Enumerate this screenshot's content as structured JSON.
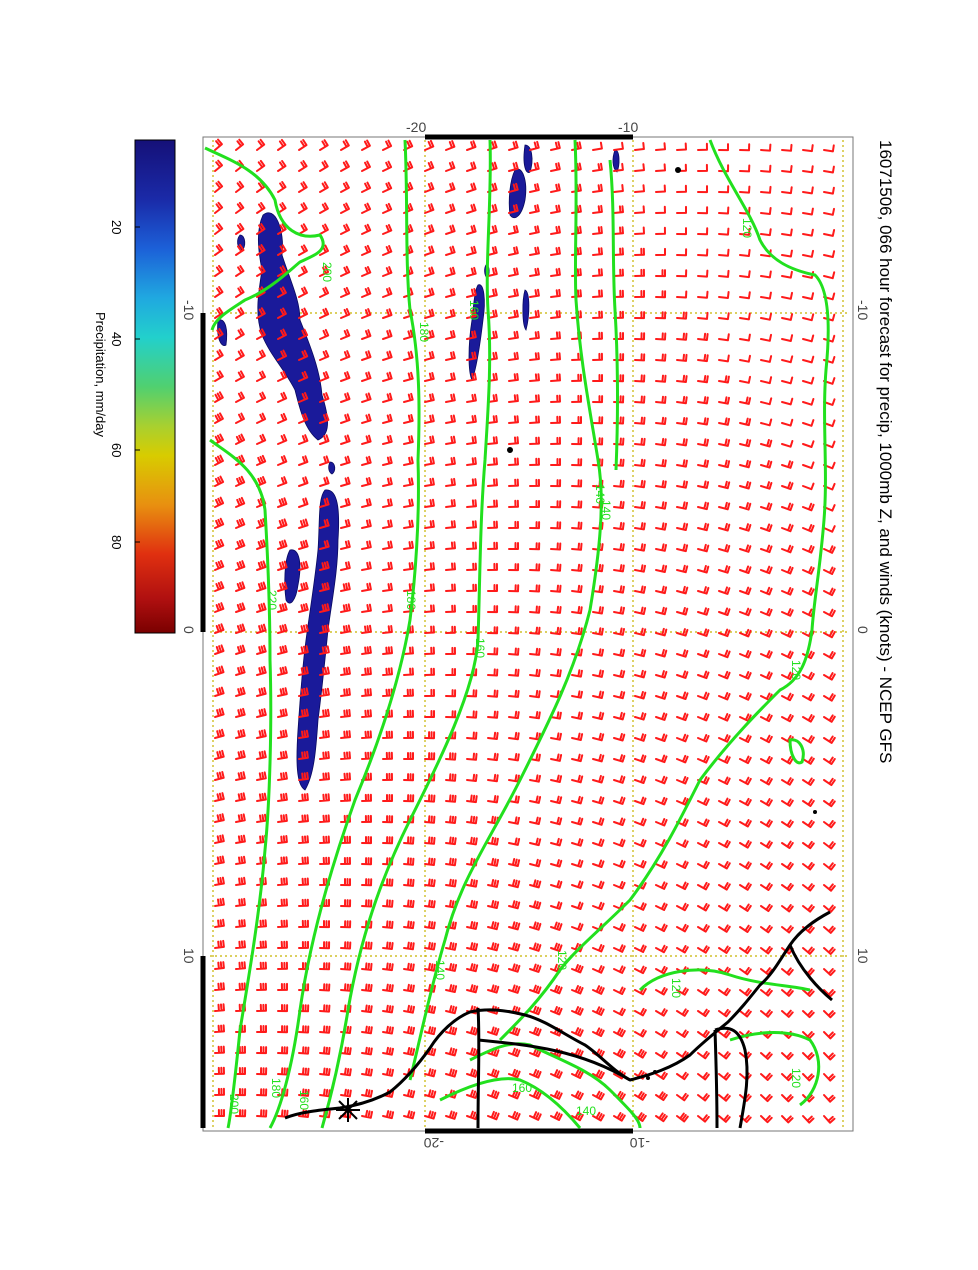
{
  "title": "16071506, 066 hour forecast for precip, 1000mb Z, and winds (knots) - NCEP GFS",
  "colorbar": {
    "label": "Precipitation, mm/day",
    "ticks": [
      "20",
      "40",
      "60",
      "80"
    ],
    "colors": [
      "#2a1a8c",
      "#1030c8",
      "#1e7fe0",
      "#20c8d2",
      "#40d080",
      "#a0d040",
      "#d8d000",
      "#e89010",
      "#e03010",
      "#a01010",
      "#800000"
    ]
  },
  "axes": {
    "lon_ticks": [
      "-10",
      "0",
      "10"
    ],
    "lat_ticks": [
      "-20",
      "-10"
    ]
  },
  "contour_labels": [
    "200",
    "180",
    "160",
    "140",
    "120",
    "220",
    "180",
    "160",
    "140",
    "120",
    "200",
    "180",
    "160",
    "140",
    "120",
    "160",
    "140",
    "120",
    "120"
  ],
  "colors": {
    "contour": "#22e01e",
    "barb": "#ff1a1a",
    "precip": "#1a1a9a",
    "grid": "#c8b400",
    "coast": "#000000"
  }
}
